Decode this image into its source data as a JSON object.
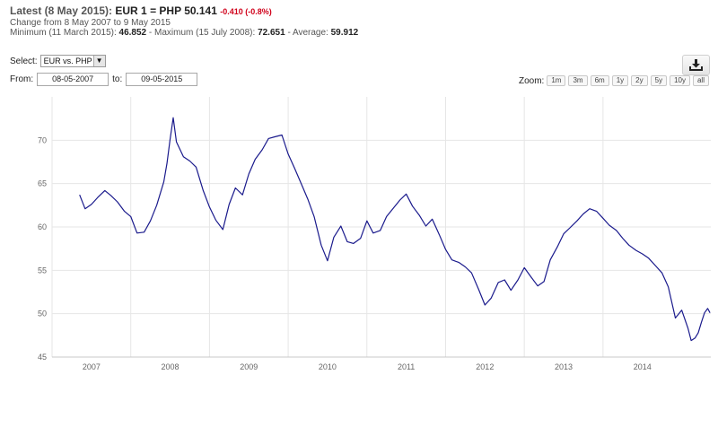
{
  "header": {
    "latest_label": "Latest (8 May 2015):",
    "rate_text": "EUR 1 = PHP 50.141",
    "change_text": "-0.410 (-0.8%)",
    "range_text": "Change from 8 May 2007 to 9 May 2015",
    "min_label": "Minimum (11 March 2015):",
    "min_value": "46.852",
    "max_label": "- Maximum (15 July 2008):",
    "max_value": "72.651",
    "avg_label": "- Average:",
    "avg_value": "59.912"
  },
  "controls": {
    "select_label": "Select:",
    "pair_value": "EUR vs. PHP",
    "from_label": "From:",
    "from_value": "08-05-2007",
    "to_label": "to:",
    "to_value": "09-05-2015",
    "zoom_label": "Zoom:",
    "zoom_options": [
      "1m",
      "3m",
      "6m",
      "1y",
      "2y",
      "5y",
      "10y",
      "all"
    ],
    "download_icon": "download-icon"
  },
  "colors": {
    "line": "#1a1a8c",
    "grid": "#e6e6e6",
    "change_negative": "#d0021b"
  },
  "chart_data": {
    "type": "line",
    "title": "",
    "xlabel": "",
    "ylabel": "",
    "ylim": [
      45,
      75
    ],
    "xlim": [
      2007.0,
      2015.37
    ],
    "y_ticks": [
      45,
      50,
      55,
      60,
      65,
      70
    ],
    "x_ticks": [
      "2007",
      "2008",
      "2009",
      "2010",
      "2011",
      "2012",
      "2013",
      "2014"
    ],
    "grid": "both",
    "series": [
      {
        "x": [
          2007.35,
          2007.42,
          2007.5,
          2007.58,
          2007.67,
          2007.75,
          2007.83,
          2007.92,
          2008.0,
          2008.08,
          2008.17,
          2008.25,
          2008.33,
          2008.42,
          2008.46,
          2008.5,
          2008.54,
          2008.58,
          2008.67,
          2008.75,
          2008.83,
          2008.92,
          2009.0,
          2009.08,
          2009.17,
          2009.25,
          2009.33,
          2009.42,
          2009.5,
          2009.58,
          2009.67,
          2009.75,
          2009.83,
          2009.92,
          2010.0,
          2010.08,
          2010.17,
          2010.25,
          2010.33,
          2010.42,
          2010.5,
          2010.58,
          2010.67,
          2010.75,
          2010.83,
          2010.92,
          2011.0,
          2011.08,
          2011.17,
          2011.25,
          2011.33,
          2011.42,
          2011.5,
          2011.58,
          2011.67,
          2011.75,
          2011.83,
          2011.92,
          2012.0,
          2012.08,
          2012.17,
          2012.25,
          2012.33,
          2012.42,
          2012.5,
          2012.58,
          2012.67,
          2012.75,
          2012.83,
          2012.92,
          2013.0,
          2013.08,
          2013.17,
          2013.25,
          2013.33,
          2013.42,
          2013.5,
          2013.58,
          2013.67,
          2013.75,
          2013.83,
          2013.92,
          2014.0,
          2014.08,
          2014.17,
          2014.25,
          2014.33,
          2014.42,
          2014.5,
          2014.58,
          2014.67,
          2014.75,
          2014.83,
          2014.92,
          2015.0,
          2015.08,
          2015.12,
          2015.17,
          2015.21,
          2015.25,
          2015.29,
          2015.33,
          2015.36
        ],
        "y": [
          63.7,
          62.1,
          62.6,
          63.4,
          64.2,
          63.6,
          62.9,
          61.8,
          61.2,
          59.3,
          59.4,
          60.7,
          62.5,
          65.2,
          67.3,
          70.1,
          72.6,
          69.8,
          68.1,
          67.6,
          66.9,
          64.2,
          62.3,
          60.8,
          59.7,
          62.6,
          64.5,
          63.7,
          66.1,
          67.8,
          68.9,
          70.2,
          70.4,
          70.6,
          68.4,
          66.8,
          64.9,
          63.2,
          61.2,
          57.9,
          56.1,
          58.8,
          60.1,
          58.3,
          58.1,
          58.7,
          60.7,
          59.3,
          59.6,
          61.2,
          62.1,
          63.1,
          63.8,
          62.4,
          61.3,
          60.1,
          60.9,
          59.1,
          57.4,
          56.2,
          55.9,
          55.4,
          54.7,
          52.8,
          51.0,
          51.8,
          53.6,
          53.9,
          52.7,
          53.9,
          55.3,
          54.3,
          53.2,
          53.7,
          56.2,
          57.7,
          59.2,
          59.9,
          60.7,
          61.5,
          62.1,
          61.8,
          61.0,
          60.2,
          59.6,
          58.7,
          57.9,
          57.3,
          56.9,
          56.4,
          55.5,
          54.7,
          53.1,
          49.5,
          50.4,
          48.3,
          46.9,
          47.2,
          47.8,
          49.0,
          50.1,
          50.6,
          50.1
        ]
      }
    ]
  }
}
